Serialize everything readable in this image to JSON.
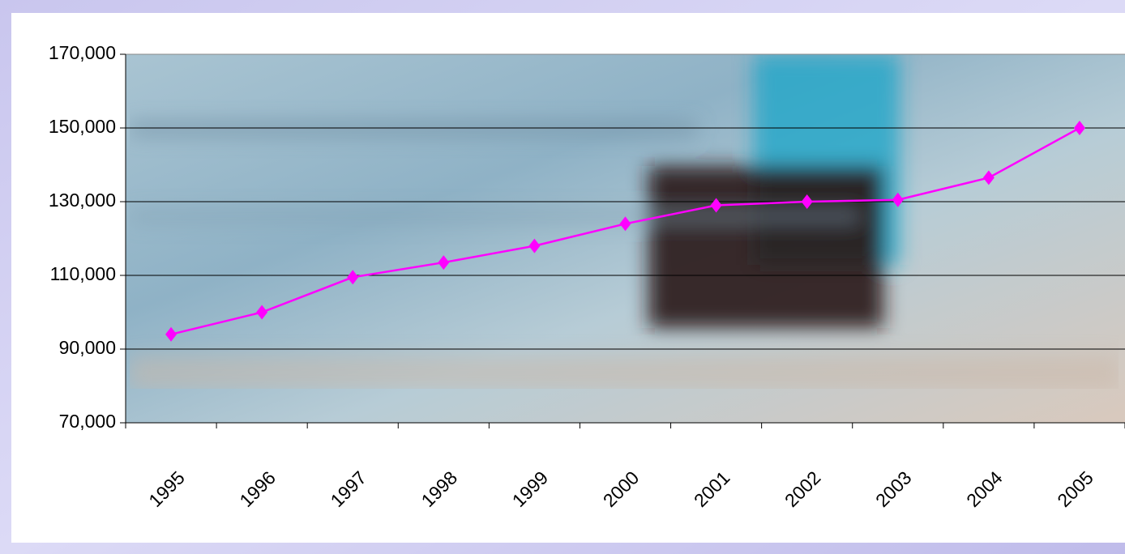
{
  "chart_data": {
    "type": "line",
    "categories": [
      "1995",
      "1996",
      "1997",
      "1998",
      "1999",
      "2000",
      "2001",
      "2002",
      "2003",
      "2004",
      "2005"
    ],
    "series": [
      {
        "color": "#ff00ff",
        "values": [
          94000,
          100000,
          109500,
          113500,
          118000,
          124000,
          129000,
          130000,
          130500,
          136500,
          150000
        ]
      }
    ],
    "ylim": [
      70000,
      170000
    ],
    "yticks": [
      {
        "value": 70000,
        "label": "70,000"
      },
      {
        "value": 90000,
        "label": "90,000"
      },
      {
        "value": 110000,
        "label": "110,000"
      },
      {
        "value": 130000,
        "label": "130,000"
      },
      {
        "value": 150000,
        "label": "150,000"
      },
      {
        "value": 170000,
        "label": "170,000"
      }
    ],
    "grid": true
  }
}
